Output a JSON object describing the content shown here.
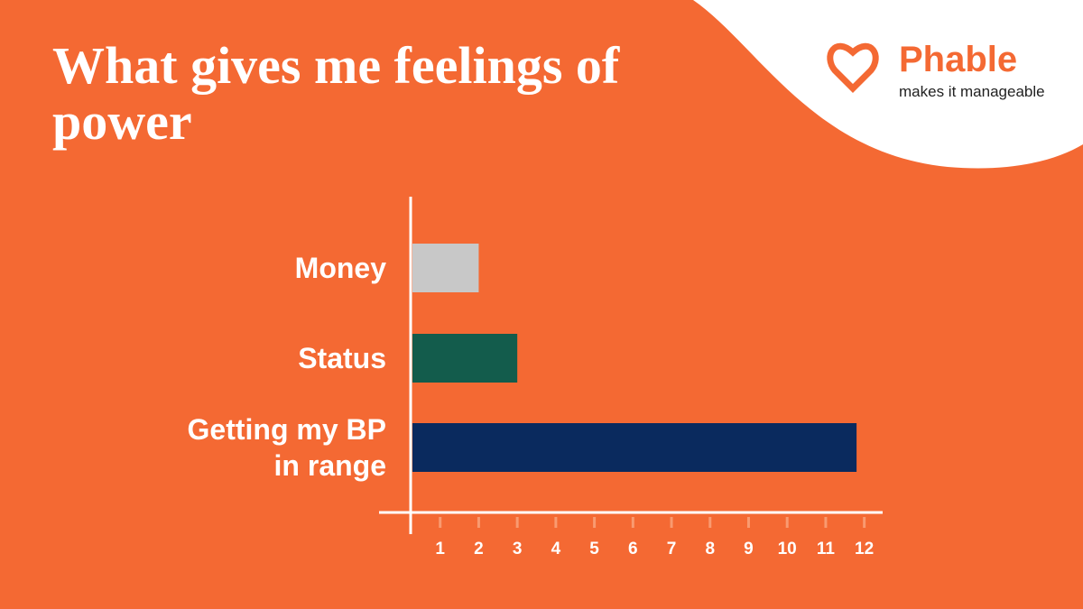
{
  "brand": {
    "name": "Phable",
    "tagline": "makes it manageable"
  },
  "chart_data": {
    "type": "bar",
    "orientation": "horizontal",
    "title": "What gives me feelings of power",
    "categories": [
      "Money",
      "Status",
      "Getting my BP in range"
    ],
    "values": [
      2,
      3,
      11.8
    ],
    "colors": [
      "#c8c8c8",
      "#135c4c",
      "#0a2a5e"
    ],
    "xlim": [
      0,
      12.5
    ],
    "xticks": [
      1,
      2,
      3,
      4,
      5,
      6,
      7,
      8,
      9,
      10,
      11,
      12
    ]
  }
}
